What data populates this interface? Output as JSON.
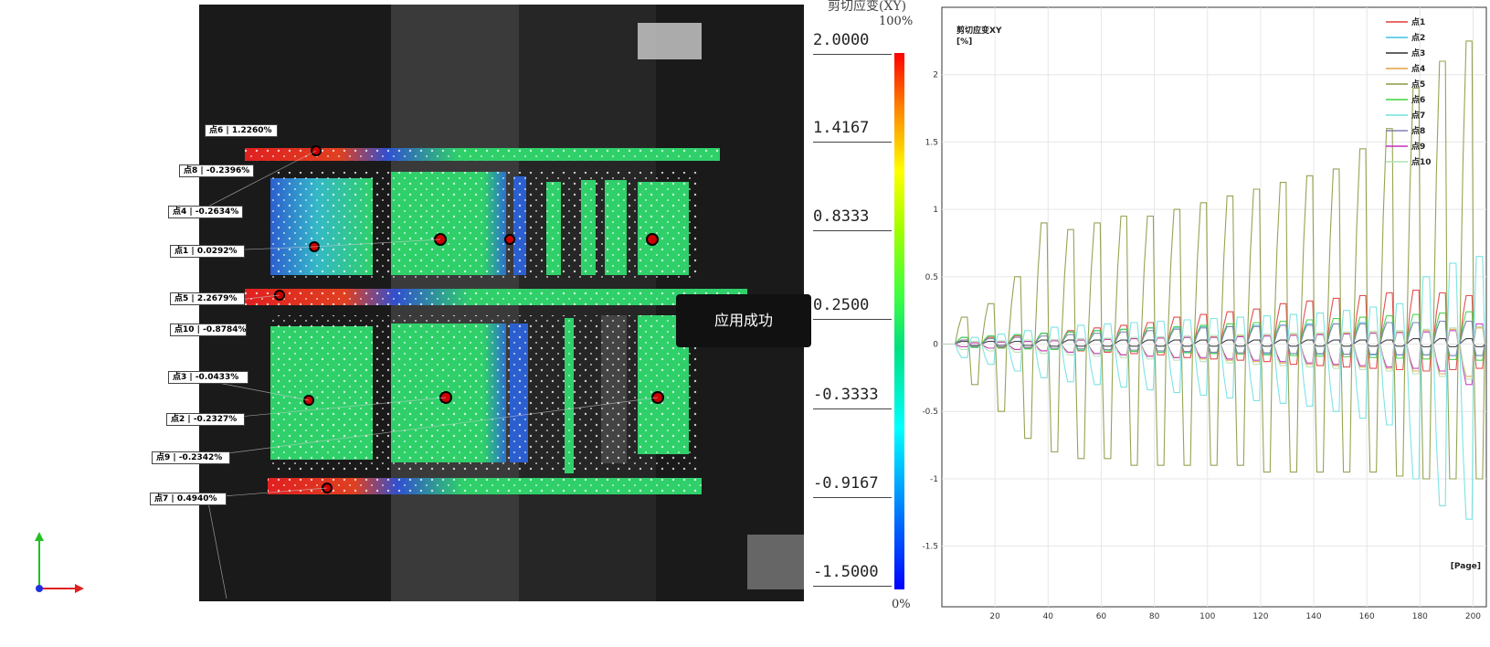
{
  "scale": {
    "title": "剪切应变(XY)",
    "top_percent": "100%",
    "bottom_percent": "0%",
    "ticks": [
      "2.0000",
      "1.4167",
      "0.8333",
      "0.2500",
      "-0.3333",
      "-0.9167",
      "-1.5000"
    ]
  },
  "toast": {
    "text": "应用成功"
  },
  "points": [
    {
      "text": "点6 | 1.2260%"
    },
    {
      "text": "点8 | -0.2396%"
    },
    {
      "text": "点4 | -0.2634%"
    },
    {
      "text": "点1 | 0.0292%"
    },
    {
      "text": "点5 | 2.2679%"
    },
    {
      "text": "点10 | -0.8784%"
    },
    {
      "text": "点3 | -0.0433%"
    },
    {
      "text": "点2 | -0.2327%"
    },
    {
      "text": "点9 | -0.2342%"
    },
    {
      "text": "点7 | 0.4940%"
    }
  ],
  "colors": {
    "cam_bg": "#1a1a1a",
    "beam": "#2f2f2f",
    "specimen_green": "#2fd06a",
    "specimen_blue": "#2b5fd0",
    "specimen_red": "#e02020",
    "marker": "#cc0000"
  },
  "chart_data": {
    "type": "line",
    "title": "剪切应变XY",
    "ylabel": "[%]",
    "xlabel": "[Page]",
    "xlim": [
      0,
      205
    ],
    "ylim": [
      -1.95,
      2.5
    ],
    "x_ticks": [
      20,
      40,
      60,
      80,
      100,
      120,
      140,
      160,
      180,
      200
    ],
    "y_ticks": [
      -1.5,
      -1,
      -0.5,
      0,
      0.5,
      1,
      1.5,
      2
    ],
    "grid": true,
    "legend_position": "top-right",
    "series": [
      {
        "name": "点1",
        "color": "#e03c3c",
        "amplitudes": [
          0.03,
          0.05,
          0.06,
          0.08,
          0.1,
          0.12,
          0.14,
          0.16,
          0.2,
          0.22,
          0.24,
          0.26,
          0.3,
          0.32,
          0.34,
          0.36,
          0.38,
          0.4,
          0.38,
          0.36
        ],
        "offsets": [
          0.0,
          0.0,
          0.0,
          0.0,
          0.0,
          0.0,
          0.0,
          0.0,
          0.0,
          0.0,
          0.0,
          0.0,
          0.0,
          0.0,
          0.0,
          0.0,
          0.0,
          0.0,
          0.0,
          0.0
        ]
      },
      {
        "name": "点2",
        "color": "#40c0e0",
        "amplitudes": [
          0.05,
          0.06,
          0.07,
          0.08,
          0.09,
          0.1,
          0.11,
          0.12,
          0.12,
          0.13,
          0.13,
          0.14,
          0.14,
          0.15,
          0.15,
          0.16,
          0.16,
          0.16,
          0.17,
          0.17
        ],
        "offsets": [
          0,
          0,
          0,
          0,
          0,
          0,
          0,
          0,
          0,
          0,
          0,
          0,
          0,
          0,
          0,
          0,
          0,
          0,
          0,
          0
        ]
      },
      {
        "name": "点3",
        "color": "#303030",
        "amplitudes": [
          0.02,
          0.02,
          0.02,
          0.03,
          0.03,
          0.03,
          0.03,
          0.03,
          0.03,
          0.03,
          0.03,
          0.03,
          0.03,
          0.03,
          0.03,
          0.03,
          0.03,
          0.04,
          0.04,
          0.04
        ],
        "offsets": [
          0,
          0,
          0,
          0,
          0,
          0,
          0,
          0,
          0,
          0,
          0,
          0,
          0,
          0,
          0,
          0,
          0,
          0,
          0,
          0
        ]
      },
      {
        "name": "点4",
        "color": "#e0a040",
        "amplitudes": [
          -0.02,
          -0.03,
          -0.04,
          -0.05,
          -0.06,
          -0.07,
          -0.08,
          -0.09,
          -0.1,
          -0.11,
          -0.12,
          -0.13,
          -0.14,
          -0.15,
          -0.16,
          -0.17,
          -0.18,
          -0.2,
          -0.22,
          -0.24
        ],
        "offsets": [
          0,
          0,
          0,
          0,
          0,
          0,
          0,
          0,
          0,
          0,
          0,
          0,
          0,
          0,
          0,
          0,
          0,
          0,
          0,
          0
        ]
      },
      {
        "name": "点5",
        "color": "#8a9a40",
        "amplitudes": [
          0.2,
          0.3,
          0.5,
          0.9,
          0.85,
          0.9,
          0.95,
          0.95,
          1.0,
          1.05,
          1.1,
          1.15,
          1.2,
          1.25,
          1.3,
          1.45,
          1.6,
          1.9,
          2.1,
          2.25
        ],
        "offsets": [
          -0.3,
          -0.5,
          -0.7,
          -0.8,
          -0.85,
          -0.85,
          -0.9,
          -0.9,
          -0.9,
          -0.9,
          -0.9,
          -0.95,
          -0.95,
          -0.95,
          -0.95,
          -0.95,
          -0.98,
          -1.0,
          -1.0,
          -1.0
        ]
      },
      {
        "name": "点6",
        "color": "#40d040",
        "amplitudes": [
          0.05,
          0.06,
          0.07,
          0.08,
          0.09,
          0.1,
          0.11,
          0.12,
          0.13,
          0.14,
          0.15,
          0.16,
          0.17,
          0.18,
          0.19,
          0.2,
          0.21,
          0.22,
          0.23,
          0.24
        ],
        "offsets": [
          0,
          0,
          0,
          0,
          0,
          0,
          0,
          0,
          0,
          0,
          0,
          0,
          0,
          0,
          0,
          0,
          0,
          0,
          0,
          0
        ]
      },
      {
        "name": "点7",
        "color": "#70e0e0",
        "amplitudes": [
          -0.1,
          -0.15,
          -0.2,
          -0.25,
          -0.28,
          -0.3,
          -0.32,
          -0.34,
          -0.36,
          -0.38,
          -0.4,
          -0.42,
          -0.44,
          -0.46,
          -0.5,
          -0.55,
          -0.6,
          -1.0,
          -1.2,
          -1.3
        ],
        "offsets": [
          0,
          0,
          0,
          0,
          0,
          0,
          0,
          0,
          0,
          0,
          0,
          0,
          0,
          0,
          0,
          0,
          0,
          0,
          0,
          0
        ]
      },
      {
        "name": "点8",
        "color": "#8080b0",
        "amplitudes": [
          0.03,
          0.04,
          0.05,
          0.06,
          0.07,
          0.08,
          0.09,
          0.1,
          0.11,
          0.12,
          0.13,
          0.13,
          0.14,
          0.14,
          0.15,
          0.15,
          0.16,
          0.16,
          0.17,
          0.17
        ],
        "offsets": [
          0,
          0,
          0,
          0,
          0,
          0,
          0,
          0,
          0,
          0,
          0,
          0,
          0,
          0,
          0,
          0,
          0,
          0,
          0,
          0
        ]
      },
      {
        "name": "点9",
        "color": "#c030c0",
        "amplitudes": [
          -0.02,
          -0.03,
          -0.04,
          -0.05,
          -0.06,
          -0.07,
          -0.08,
          -0.09,
          -0.1,
          -0.1,
          -0.11,
          -0.12,
          -0.13,
          -0.14,
          -0.15,
          -0.16,
          -0.17,
          -0.18,
          -0.2,
          -0.3
        ],
        "offsets": [
          0,
          0,
          0,
          0,
          0,
          0,
          0,
          0,
          0,
          0,
          0,
          0,
          0,
          0,
          0,
          0,
          0,
          0,
          0,
          0
        ]
      },
      {
        "name": "点10",
        "color": "#b0e0b0",
        "amplitudes": [
          -0.04,
          -0.05,
          -0.06,
          -0.07,
          -0.08,
          -0.09,
          -0.1,
          -0.11,
          -0.12,
          -0.13,
          -0.14,
          -0.15,
          -0.16,
          -0.17,
          -0.18,
          -0.19,
          -0.2,
          -0.22,
          -0.24,
          -0.26
        ],
        "offsets": [
          0,
          0,
          0,
          0,
          0,
          0,
          0,
          0,
          0,
          0,
          0,
          0,
          0,
          0,
          0,
          0,
          0,
          0,
          0,
          0
        ]
      }
    ]
  }
}
